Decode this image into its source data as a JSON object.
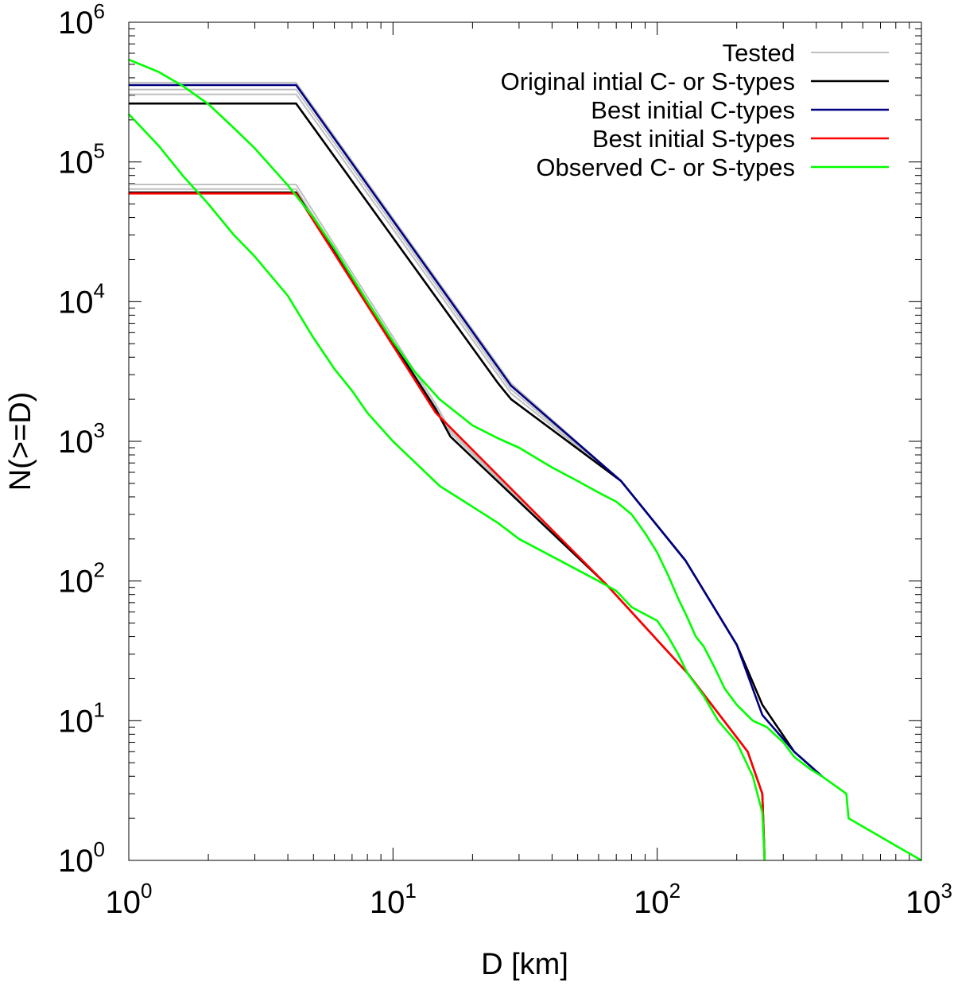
{
  "chart_data": {
    "type": "line",
    "xscale": "log",
    "yscale": "log",
    "xlabel": "D [km]",
    "ylabel": "N(>=D)",
    "xlim": [
      1,
      1000
    ],
    "ylim": [
      1,
      1000000
    ],
    "grid": false,
    "legend_position": "top-right",
    "x_ticks": [
      {
        "base": "10",
        "exp": "0",
        "value": 1
      },
      {
        "base": "10",
        "exp": "1",
        "value": 10
      },
      {
        "base": "10",
        "exp": "2",
        "value": 100
      },
      {
        "base": "10",
        "exp": "3",
        "value": 1000
      }
    ],
    "y_ticks": [
      {
        "base": "10",
        "exp": "0",
        "value": 1
      },
      {
        "base": "10",
        "exp": "1",
        "value": 10
      },
      {
        "base": "10",
        "exp": "2",
        "value": 100
      },
      {
        "base": "10",
        "exp": "3",
        "value": 1000
      },
      {
        "base": "10",
        "exp": "4",
        "value": 10000
      },
      {
        "base": "10",
        "exp": "5",
        "value": 100000
      },
      {
        "base": "10",
        "exp": "6",
        "value": 1000000
      }
    ],
    "legend": [
      {
        "label": "Tested",
        "color": "#c0c0c0"
      },
      {
        "label": "Original intial C- or S-types",
        "color": "#000000"
      },
      {
        "label": "Best initial C-types",
        "color": "#000080"
      },
      {
        "label": "Best initial S-types",
        "color": "#ff0000"
      },
      {
        "label": "Observed C- or S-types",
        "color": "#00ff00"
      }
    ],
    "series": [
      {
        "name": "Tested",
        "color": "#c0c0c0",
        "points": [
          [
            1,
            370000
          ],
          [
            4.3,
            370000
          ],
          [
            28,
            2600
          ],
          [
            73,
            520
          ],
          [
            128,
            140
          ],
          [
            200,
            35
          ],
          [
            250,
            13
          ],
          [
            330,
            6
          ],
          [
            420,
            4
          ]
        ]
      },
      {
        "name": "Tested",
        "color": "#c0c0c0",
        "points": [
          [
            1,
            330000
          ],
          [
            4.3,
            330000
          ],
          [
            28,
            2350
          ],
          [
            73,
            520
          ],
          [
            128,
            140
          ],
          [
            200,
            35
          ],
          [
            250,
            13
          ],
          [
            330,
            6
          ],
          [
            420,
            4
          ]
        ]
      },
      {
        "name": "Tested",
        "color": "#c0c0c0",
        "points": [
          [
            1,
            305000
          ],
          [
            4.3,
            305000
          ],
          [
            28,
            2200
          ],
          [
            73,
            520
          ],
          [
            128,
            140
          ],
          [
            200,
            35
          ],
          [
            250,
            13
          ],
          [
            330,
            6
          ],
          [
            420,
            4
          ]
        ]
      },
      {
        "name": "Tested",
        "color": "#c0c0c0",
        "points": [
          [
            1,
            69000
          ],
          [
            4.3,
            69000
          ],
          [
            14.5,
            1850
          ],
          [
            16.5,
            1200
          ],
          [
            64,
            95
          ],
          [
            130,
            22
          ],
          [
            220,
            6
          ],
          [
            250,
            3
          ],
          [
            255,
            1
          ]
        ]
      },
      {
        "name": "Tested",
        "color": "#c0c0c0",
        "points": [
          [
            1,
            64000
          ],
          [
            4.3,
            64000
          ],
          [
            14.5,
            1750
          ],
          [
            16.5,
            1150
          ],
          [
            64,
            95
          ],
          [
            130,
            22
          ],
          [
            220,
            6
          ],
          [
            250,
            3
          ],
          [
            255,
            1
          ]
        ]
      },
      {
        "name": "Original intial C- or S-types",
        "color": "#000000",
        "points": [
          [
            1,
            262000
          ],
          [
            4.3,
            262000
          ],
          [
            25,
            2600
          ],
          [
            28,
            2000
          ],
          [
            73,
            520
          ],
          [
            128,
            140
          ],
          [
            200,
            35
          ],
          [
            250,
            13
          ],
          [
            330,
            6
          ],
          [
            420,
            4
          ]
        ]
      },
      {
        "name": "Original intial C- or S-types",
        "color": "#000000",
        "points": [
          [
            1,
            60500
          ],
          [
            4.3,
            60500
          ],
          [
            14.5,
            1700
          ],
          [
            16.5,
            1080
          ],
          [
            64,
            95
          ],
          [
            130,
            22
          ],
          [
            220,
            6
          ],
          [
            250,
            3
          ],
          [
            255,
            1
          ]
        ]
      },
      {
        "name": "Best initial C-types",
        "color": "#000080",
        "points": [
          [
            1,
            355000
          ],
          [
            4.3,
            355000
          ],
          [
            28,
            2500
          ],
          [
            73,
            520
          ],
          [
            128,
            140
          ],
          [
            200,
            35
          ],
          [
            250,
            11
          ],
          [
            330,
            6
          ],
          [
            420,
            4
          ]
        ]
      },
      {
        "name": "Best initial S-types",
        "color": "#ff0000",
        "points": [
          [
            1,
            59500
          ],
          [
            4.3,
            59500
          ],
          [
            14.5,
            1600
          ],
          [
            64,
            95
          ],
          [
            130,
            22
          ],
          [
            220,
            6
          ],
          [
            250,
            3
          ],
          [
            255,
            1
          ]
        ]
      },
      {
        "name": "Observed C- or S-types",
        "color": "#00ff00",
        "points": [
          [
            1,
            540000
          ],
          [
            1.3,
            440000
          ],
          [
            1.6,
            350000
          ],
          [
            2,
            260000
          ],
          [
            2.5,
            175000
          ],
          [
            3,
            125000
          ],
          [
            4,
            68000
          ],
          [
            5,
            40000
          ],
          [
            6,
            24000
          ],
          [
            7,
            15000
          ],
          [
            8,
            10000
          ],
          [
            10,
            5200
          ],
          [
            12,
            3200
          ],
          [
            15,
            2000
          ],
          [
            20,
            1300
          ],
          [
            25,
            1050
          ],
          [
            30,
            900
          ],
          [
            40,
            650
          ],
          [
            50,
            520
          ],
          [
            60,
            430
          ],
          [
            70,
            370
          ],
          [
            80,
            300
          ],
          [
            90,
            220
          ],
          [
            100,
            160
          ],
          [
            110,
            110
          ],
          [
            120,
            75
          ],
          [
            130,
            55
          ],
          [
            140,
            40
          ],
          [
            150,
            34
          ],
          [
            165,
            24
          ],
          [
            180,
            17
          ],
          [
            200,
            13
          ],
          [
            230,
            10
          ],
          [
            260,
            9
          ],
          [
            300,
            7
          ],
          [
            330,
            5.5
          ],
          [
            380,
            4.5
          ],
          [
            420,
            4
          ],
          [
            520,
            3
          ],
          [
            530,
            2
          ],
          [
            1000,
            1
          ]
        ]
      },
      {
        "name": "Observed C- or S-types",
        "color": "#00ff00",
        "points": [
          [
            1,
            220000
          ],
          [
            1.3,
            130000
          ],
          [
            1.6,
            80000
          ],
          [
            2,
            50000
          ],
          [
            2.5,
            30000
          ],
          [
            3,
            21000
          ],
          [
            4,
            11000
          ],
          [
            5,
            5500
          ],
          [
            6,
            3300
          ],
          [
            7,
            2300
          ],
          [
            8,
            1600
          ],
          [
            10,
            1000
          ],
          [
            12,
            720
          ],
          [
            15,
            480
          ],
          [
            20,
            340
          ],
          [
            25,
            260
          ],
          [
            30,
            200
          ],
          [
            40,
            150
          ],
          [
            50,
            120
          ],
          [
            60,
            100
          ],
          [
            70,
            85
          ],
          [
            80,
            65
          ],
          [
            100,
            52
          ],
          [
            110,
            40
          ],
          [
            120,
            30
          ],
          [
            130,
            22
          ],
          [
            150,
            15
          ],
          [
            170,
            10
          ],
          [
            200,
            7
          ],
          [
            230,
            4
          ],
          [
            250,
            2.2
          ],
          [
            255,
            1
          ]
        ]
      }
    ]
  }
}
